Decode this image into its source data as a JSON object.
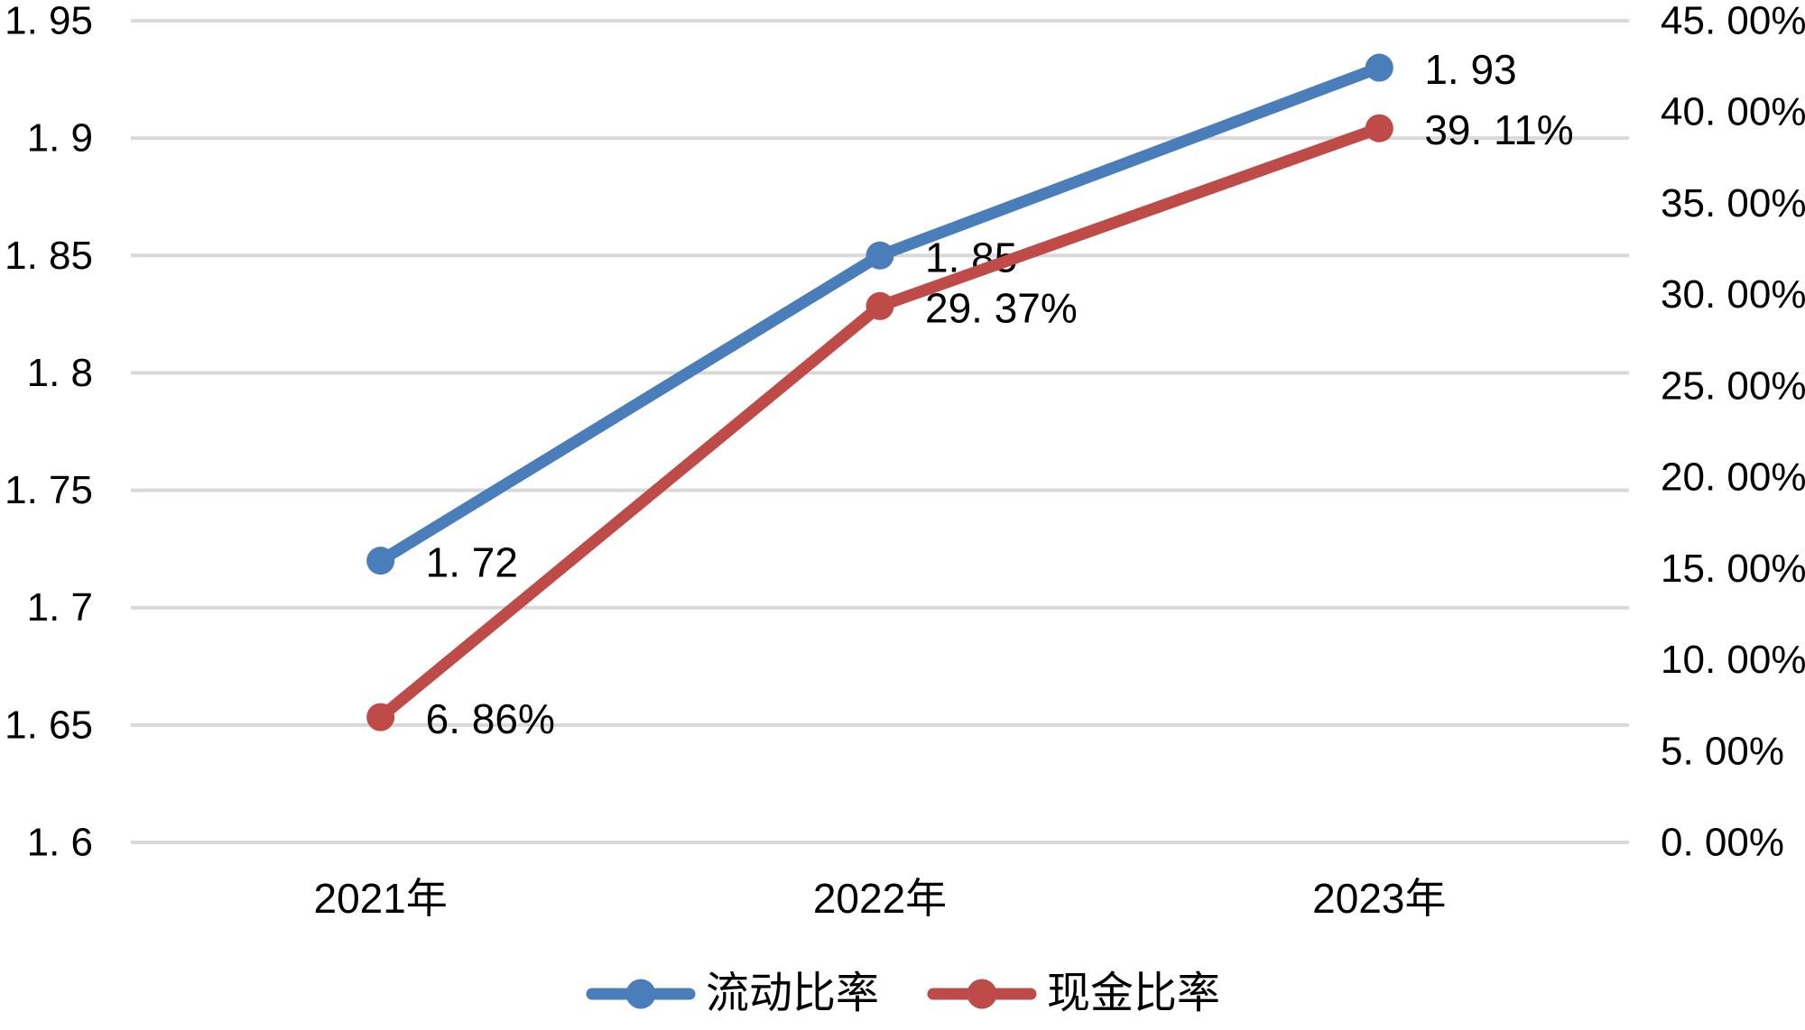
{
  "chart_data": {
    "type": "line",
    "title": "",
    "categories": [
      "2021年",
      "2022年",
      "2023年"
    ],
    "series": [
      {
        "name": "流动比率",
        "axis": "left",
        "color": "#4a7ebb",
        "values": [
          1.72,
          1.85,
          1.93
        ],
        "data_labels": [
          "1. 72",
          "1. 85",
          "1. 93"
        ]
      },
      {
        "name": "现金比率",
        "axis": "right",
        "color": "#be4b48",
        "values": [
          6.86,
          29.37,
          39.11
        ],
        "data_labels": [
          "6. 86%",
          "29. 37%",
          "39. 11%"
        ]
      }
    ],
    "left_axis": {
      "min": 1.6,
      "max": 1.95,
      "ticks": [
        1.95,
        1.9,
        1.85,
        1.8,
        1.75,
        1.7,
        1.65,
        1.6
      ],
      "tick_labels": [
        "1. 95",
        "1. 9",
        "1. 85",
        "1. 8",
        "1. 75",
        "1. 7",
        "1. 65",
        "1. 6"
      ]
    },
    "right_axis": {
      "min": 0,
      "max": 45,
      "ticks": [
        45,
        40,
        35,
        30,
        25,
        20,
        15,
        10,
        5,
        0
      ],
      "tick_labels": [
        "45. 00%",
        "40. 00%",
        "35. 00%",
        "30. 00%",
        "25. 00%",
        "20. 00%",
        "15. 00%",
        "10. 00%",
        "5. 00%",
        "0. 00%"
      ]
    },
    "grid": true,
    "gridline_color": "#d9d9d9",
    "text_color": "#000000",
    "legend_position": "bottom"
  },
  "legend": {
    "items": [
      {
        "label": "流动比率",
        "color": "#4a7ebb"
      },
      {
        "label": "现金比率",
        "color": "#be4b48"
      }
    ]
  }
}
